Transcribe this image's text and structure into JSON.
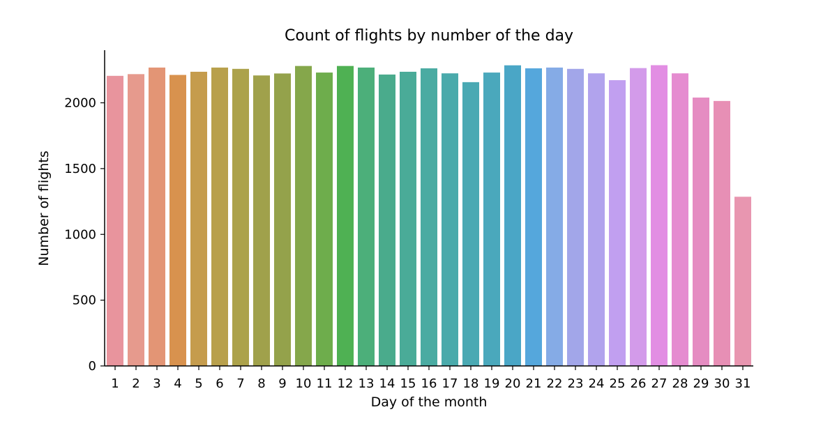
{
  "chart_data": {
    "type": "bar",
    "title": "Count of flights by number of the day",
    "xlabel": "Day of the month",
    "ylabel": "Number of flights",
    "categories": [
      "1",
      "2",
      "3",
      "4",
      "5",
      "6",
      "7",
      "8",
      "9",
      "10",
      "11",
      "12",
      "13",
      "14",
      "15",
      "16",
      "17",
      "18",
      "19",
      "20",
      "21",
      "22",
      "23",
      "24",
      "25",
      "26",
      "27",
      "28",
      "29",
      "30",
      "31"
    ],
    "values": [
      2205,
      2218,
      2268,
      2212,
      2236,
      2268,
      2258,
      2208,
      2223,
      2280,
      2230,
      2280,
      2268,
      2215,
      2236,
      2262,
      2224,
      2157,
      2230,
      2285,
      2262,
      2268,
      2258,
      2224,
      2172,
      2264,
      2286,
      2224,
      2040,
      2014,
      1286
    ],
    "colors": [
      "#e8949d",
      "#e69a8d",
      "#e39575",
      "#d8924e",
      "#c59c4d",
      "#b8a04c",
      "#aca24b",
      "#a0a14b",
      "#94a24b",
      "#85a74b",
      "#6ead4c",
      "#4fb153",
      "#4caf7a",
      "#4aab8c",
      "#4aab98",
      "#4aaba2",
      "#4aaaab",
      "#4aa9b3",
      "#4aa8bc",
      "#4aa6c6",
      "#55a7dc",
      "#85abe6",
      "#a2a6e9",
      "#b1a3ed",
      "#c19ff0",
      "#d39bea",
      "#e28ee3",
      "#e58cd0",
      "#e58cc2",
      "#e78fb5",
      "#e896b0"
    ],
    "yticks": [
      0,
      500,
      1000,
      1500,
      2000
    ],
    "ylim": [
      0,
      2400
    ],
    "grid": false,
    "legend": "none"
  }
}
